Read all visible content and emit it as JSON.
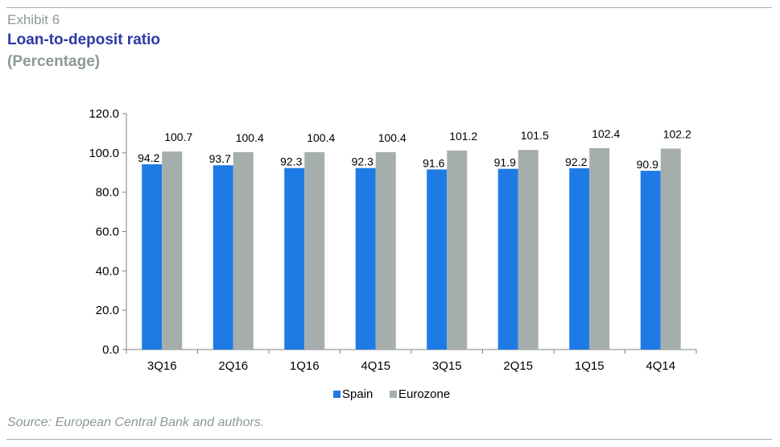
{
  "header": {
    "exhibit": "Exhibit 6",
    "title": "Loan-to-deposit ratio",
    "subtitle": "(Percentage)"
  },
  "footer": {
    "source": "Source: European Central Bank and authors."
  },
  "colors": {
    "spain": "#1e7be6",
    "eurozone": "#a5aead",
    "title": "#2c3aa6",
    "muted": "#8c9898"
  },
  "chart_data": {
    "type": "bar",
    "categories": [
      "3Q16",
      "2Q16",
      "1Q16",
      "4Q15",
      "3Q15",
      "2Q15",
      "1Q15",
      "4Q14"
    ],
    "series": [
      {
        "name": "Spain",
        "values": [
          94.2,
          93.7,
          92.3,
          92.3,
          91.6,
          91.9,
          92.2,
          90.9
        ]
      },
      {
        "name": "Eurozone",
        "values": [
          100.7,
          100.4,
          100.4,
          100.4,
          101.2,
          101.5,
          102.4,
          102.2
        ]
      }
    ],
    "yticks": [
      "0.0",
      "20.0",
      "40.0",
      "60.0",
      "80.0",
      "100.0",
      "120.0"
    ],
    "ylim": [
      0,
      120
    ],
    "grid": false,
    "legend": "bottom-center"
  }
}
